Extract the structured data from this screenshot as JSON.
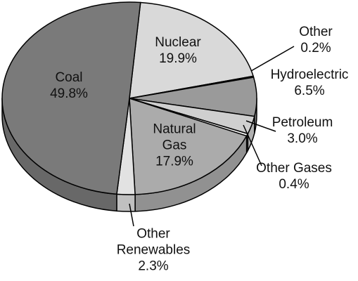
{
  "chart_data": {
    "type": "pie",
    "categories": [
      "Nuclear",
      "Other",
      "Hydroelectric",
      "Petroleum",
      "Other Gases",
      "Natural Gas",
      "Other Renewables",
      "Coal"
    ],
    "values": [
      19.9,
      0.2,
      6.5,
      3.0,
      0.4,
      17.9,
      2.3,
      49.8
    ],
    "value_labels": [
      "19.9%",
      "0.2%",
      "6.5%",
      "3.0%",
      "0.4%",
      "17.9%",
      "2.3%",
      "49.8%"
    ],
    "colors": [
      "#d9d9d9",
      "#f2f2f2",
      "#9a9a9a",
      "#cfcfcf",
      "#f7f7f7",
      "#ababab",
      "#e2e2e2",
      "#7a7a7a"
    ]
  }
}
